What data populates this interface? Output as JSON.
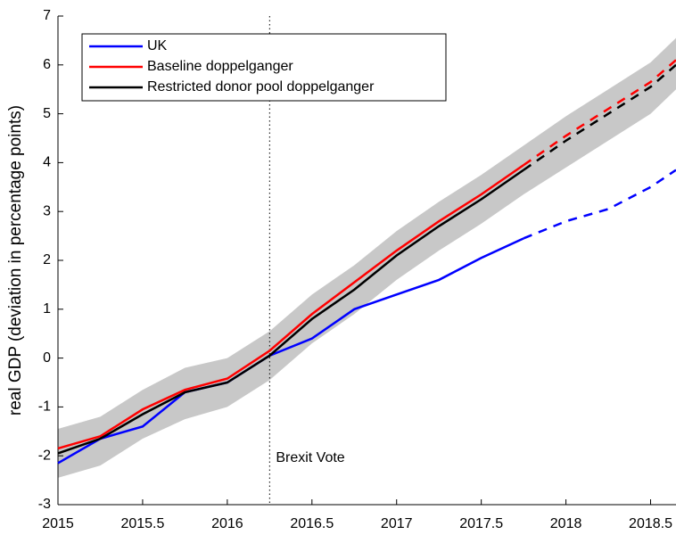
{
  "chart_data": {
    "type": "line",
    "ylabel": "real GDP (deviation in percentage points)",
    "x": [
      2015,
      2015.25,
      2015.5,
      2015.75,
      2016,
      2016.25,
      2016.5,
      2016.75,
      2017,
      2017.25,
      2017.5,
      2017.75,
      2018,
      2018.25,
      2018.5,
      2018.65
    ],
    "series": [
      {
        "name": "UK",
        "color": "#0000ff",
        "values": [
          -2.15,
          -1.65,
          -1.4,
          -0.7,
          -0.5,
          0.05,
          0.4,
          1.0,
          1.3,
          1.6,
          2.05,
          2.45,
          2.8,
          3.05,
          3.5,
          3.85
        ]
      },
      {
        "name": "Baseline doppelganger",
        "color": "#ff0000",
        "values": [
          -1.85,
          -1.6,
          -1.05,
          -0.65,
          -0.42,
          0.15,
          0.9,
          1.55,
          2.2,
          2.8,
          3.35,
          3.95,
          4.55,
          5.1,
          5.65,
          6.1
        ]
      },
      {
        "name": "Restricted donor pool doppelganger",
        "color": "#000000",
        "values": [
          -1.95,
          -1.65,
          -1.15,
          -0.7,
          -0.5,
          0.05,
          0.8,
          1.4,
          2.1,
          2.7,
          3.25,
          3.85,
          4.45,
          5.0,
          5.55,
          6.0
        ]
      }
    ],
    "band_lower": [
      -2.45,
      -2.2,
      -1.65,
      -1.25,
      -1.0,
      -0.45,
      0.3,
      0.9,
      1.6,
      2.2,
      2.75,
      3.35,
      3.9,
      4.45,
      5.0,
      5.5
    ],
    "band_upper": [
      -1.45,
      -1.2,
      -0.65,
      -0.2,
      0.0,
      0.55,
      1.3,
      1.9,
      2.6,
      3.2,
      3.75,
      4.35,
      4.95,
      5.5,
      6.05,
      6.55
    ],
    "band_color": "#c8c8c8",
    "projection_start": 2017.75,
    "vline": 2016.25,
    "annotation": "Brexit Vote",
    "xlim": [
      2015,
      2018.65
    ],
    "xticks": [
      2015,
      2015.5,
      2016,
      2016.5,
      2017,
      2017.5,
      2018,
      2018.5
    ],
    "ylim": [
      -3,
      7
    ],
    "yticks": [
      -3,
      -2,
      -1,
      0,
      1,
      2,
      3,
      4,
      5,
      6,
      7
    ],
    "legend": "upper left"
  }
}
